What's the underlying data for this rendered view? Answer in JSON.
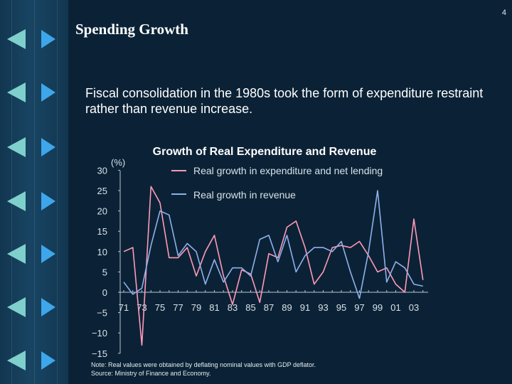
{
  "page": {
    "number": "4"
  },
  "slide": {
    "title": "Spending Growth",
    "body": "Fiscal consolidation in the 1980s took the form of expenditure restraint rather than revenue increase."
  },
  "colors": {
    "expenditure": "#ff9ab8",
    "revenue": "#8fb0ec",
    "axis": "#b8c6d2",
    "nav_left": "#7fd0cc",
    "nav_right": "#3ea6ea"
  },
  "icons": {
    "left": "triangle-left-icon",
    "right": "triangle-right-icon"
  },
  "chart_data": {
    "type": "line",
    "title": "Growth of Real Expenditure and Revenue",
    "ylabel": "(%)",
    "xlabel": "",
    "ylim": [
      -15,
      30
    ],
    "yticks": [
      "30",
      "25",
      "20",
      "15",
      "10",
      "5",
      "0",
      "−5",
      "−10",
      "−15"
    ],
    "ytick_values": [
      30,
      25,
      20,
      15,
      10,
      5,
      0,
      -5,
      -10,
      -15
    ],
    "xticks": [
      "71",
      "73",
      "75",
      "77",
      "79",
      "81",
      "83",
      "85",
      "87",
      "89",
      "91",
      "93",
      "95",
      "97",
      "99",
      "01",
      "03"
    ],
    "xtick_values": [
      1971,
      1973,
      1975,
      1977,
      1979,
      1981,
      1983,
      1985,
      1987,
      1989,
      1991,
      1993,
      1995,
      1997,
      1999,
      2001,
      2003
    ],
    "x": [
      1971,
      1972,
      1973,
      1974,
      1975,
      1976,
      1977,
      1978,
      1979,
      1980,
      1981,
      1982,
      1983,
      1984,
      1985,
      1986,
      1987,
      1988,
      1989,
      1990,
      1991,
      1992,
      1993,
      1994,
      1995,
      1996,
      1997,
      1998,
      1999,
      2000,
      2001,
      2002,
      2003,
      2004
    ],
    "series": [
      {
        "name": "Real growth in expenditure and net lending",
        "color": "#ff9ab8",
        "values": [
          10,
          11,
          -13,
          26,
          22,
          8.5,
          8.5,
          11,
          4,
          10,
          14,
          4,
          -3,
          5.5,
          4.5,
          -2.5,
          9.5,
          8.5,
          16,
          17.5,
          11,
          2,
          5,
          11,
          11.5,
          11,
          12.5,
          9,
          5,
          6,
          2,
          0,
          18,
          3
        ]
      },
      {
        "name": "Real growth in revenue",
        "color": "#8fb0ec",
        "values": [
          2.5,
          -0.5,
          1,
          11.5,
          20,
          19,
          9,
          12,
          10,
          2,
          8,
          2.5,
          6,
          6,
          4,
          13,
          14,
          7.5,
          14,
          5,
          9,
          11,
          11,
          10,
          12.5,
          5,
          -1.5,
          10,
          25,
          2.5,
          7.5,
          6,
          2,
          1.5
        ]
      }
    ],
    "legend_position": "top",
    "notes": [
      "Note: Real values were obtained by deflating nominal values with GDP deflator.",
      "Source: Ministry of Finance and Economy."
    ]
  }
}
